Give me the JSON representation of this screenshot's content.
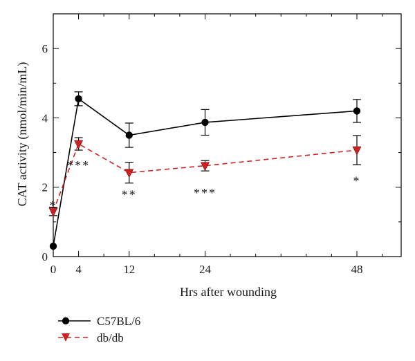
{
  "chart_data": {
    "type": "line",
    "xlabel": "Hrs after wounding",
    "ylabel": "CAT activity (nmol/min/mL)",
    "xlim": [
      0,
      55
    ],
    "ylim": [
      0,
      7
    ],
    "x_ticks": [
      0,
      4,
      12,
      24,
      48
    ],
    "y_ticks": [
      0,
      2,
      4,
      6
    ],
    "grid": false,
    "legend_position": "bottom-left, below plot",
    "series": [
      {
        "name": "C57BL/6",
        "color": "#000000",
        "line_style": "solid",
        "marker": "circle",
        "x": [
          0,
          4,
          12,
          24,
          48
        ],
        "y": [
          0.3,
          4.55,
          3.5,
          3.87,
          4.2
        ],
        "error": [
          0.0,
          0.2,
          0.35,
          0.37,
          0.33
        ]
      },
      {
        "name": "db/db",
        "color": "#cc2222",
        "line_style": "dashed",
        "marker": "triangle-down",
        "x": [
          0,
          4,
          12,
          24,
          48
        ],
        "y": [
          1.3,
          3.25,
          2.42,
          2.62,
          3.07
        ],
        "error": [
          0.12,
          0.18,
          0.3,
          0.15,
          0.42
        ]
      }
    ],
    "annotations": [
      {
        "text": "*",
        "x": 0,
        "y": 1.6
      },
      {
        "text": "***",
        "x": 4,
        "y": 2.75
      },
      {
        "text": "**",
        "x": 12,
        "y": 1.9
      },
      {
        "text": "***",
        "x": 24,
        "y": 1.95
      },
      {
        "text": "*",
        "x": 48,
        "y": 2.3
      }
    ]
  }
}
